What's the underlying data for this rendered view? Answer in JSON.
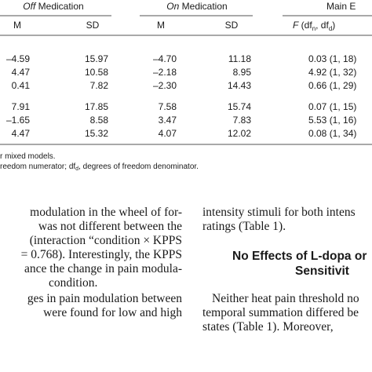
{
  "table": {
    "group_headers": [
      {
        "emphasis": "Off",
        "text": " Medication"
      },
      {
        "emphasis": "On",
        "text": " Medication"
      },
      {
        "text": "Main E"
      }
    ],
    "column_headers": [
      "M",
      "SD",
      "M",
      "SD"
    ],
    "f_header": {
      "f": "F",
      "a": " (df",
      "n": "n",
      "b": ", df",
      "d": "d",
      "c": ")"
    },
    "rows": [
      [
        "–4.59",
        "15.97",
        "–4.70",
        "11.18",
        "0.03 (1, 18)"
      ],
      [
        "4.47",
        "10.58",
        "–2.18",
        "8.95",
        "4.92 (1, 32)"
      ],
      [
        "0.41",
        "7.82",
        "–2.30",
        "14.43",
        "0.66 (1, 29)"
      ],
      [
        "7.91",
        "17.85",
        "7.58",
        "15.74",
        "0.07 (1, 15)"
      ],
      [
        "–1.65",
        "8.58",
        "3.47",
        "7.83",
        "5.53 (1, 16)"
      ],
      [
        "4.47",
        "15.32",
        "4.07",
        "12.02",
        "0.08 (1, 34)"
      ]
    ]
  },
  "footnotes": {
    "first": "r mixed models.",
    "second": {
      "a": "reedom numerator; df",
      "d": "d",
      "b": ", degrees of freedom denominator."
    }
  },
  "body": {
    "left": [
      "modulation in the wheel of for-",
      "was not different between the",
      "(interaction “condition × KPPS",
      "= 0.768). Interestingly, the KPPS",
      "ance the change in pain modula-",
      "condition.",
      "ges in pain modulation between",
      "were found for low and high"
    ],
    "right_top": [
      "intensity stimuli for both intens",
      "ratings (Table 1)."
    ],
    "heading": [
      "No Effects of L-dopa or",
      "Sensitivit"
    ],
    "right_bottom": [
      "Neither heat pain threshold no",
      "temporal summation differed be",
      "states (Table 1). Moreover,"
    ]
  }
}
